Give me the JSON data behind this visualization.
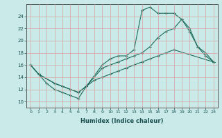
{
  "xlabel": "Humidex (Indice chaleur)",
  "bg_color": "#caeaea",
  "grid_color": "#d9a0a0",
  "line_color": "#1a6b5a",
  "xlim": [
    -0.5,
    23.5
  ],
  "ylim": [
    9,
    26
  ],
  "xticks": [
    0,
    1,
    2,
    3,
    4,
    5,
    6,
    7,
    8,
    9,
    10,
    11,
    12,
    13,
    14,
    15,
    16,
    17,
    18,
    19,
    20,
    21,
    22,
    23
  ],
  "yticks": [
    10,
    12,
    14,
    16,
    18,
    20,
    22,
    24
  ],
  "line1_x": [
    0,
    1,
    2,
    3,
    4,
    5,
    6,
    7,
    8,
    9,
    10,
    11,
    12,
    13,
    14,
    15,
    16,
    17,
    18,
    23
  ],
  "line1_y": [
    16,
    14.5,
    13,
    12,
    11.5,
    11,
    10.5,
    12.5,
    13.5,
    14,
    14.5,
    15,
    15.5,
    16,
    16.5,
    17,
    17.5,
    18,
    18.5,
    16.5
  ],
  "line2_x": [
    0,
    1,
    3,
    4,
    5,
    6,
    7,
    9,
    10,
    11,
    12,
    13,
    14,
    15,
    16,
    17,
    18,
    19,
    20,
    21,
    22,
    23
  ],
  "line2_y": [
    16,
    14.5,
    13,
    12.5,
    12,
    11.5,
    12.5,
    16,
    17,
    17.5,
    17.5,
    18.5,
    25,
    25.5,
    24.5,
    24.5,
    24.5,
    23.5,
    21.5,
    19,
    17.5,
    16.5
  ],
  "line3_x": [
    0,
    1,
    3,
    4,
    5,
    6,
    7,
    9,
    10,
    11,
    12,
    13,
    14,
    15,
    16,
    17,
    18,
    19,
    20,
    21,
    22,
    23
  ],
  "line3_y": [
    16,
    14.5,
    13,
    12.5,
    12,
    11.5,
    12.5,
    15.5,
    16,
    16.5,
    17,
    17.5,
    18,
    19,
    20.5,
    21.5,
    22,
    23.5,
    22,
    19,
    18,
    16.5
  ]
}
